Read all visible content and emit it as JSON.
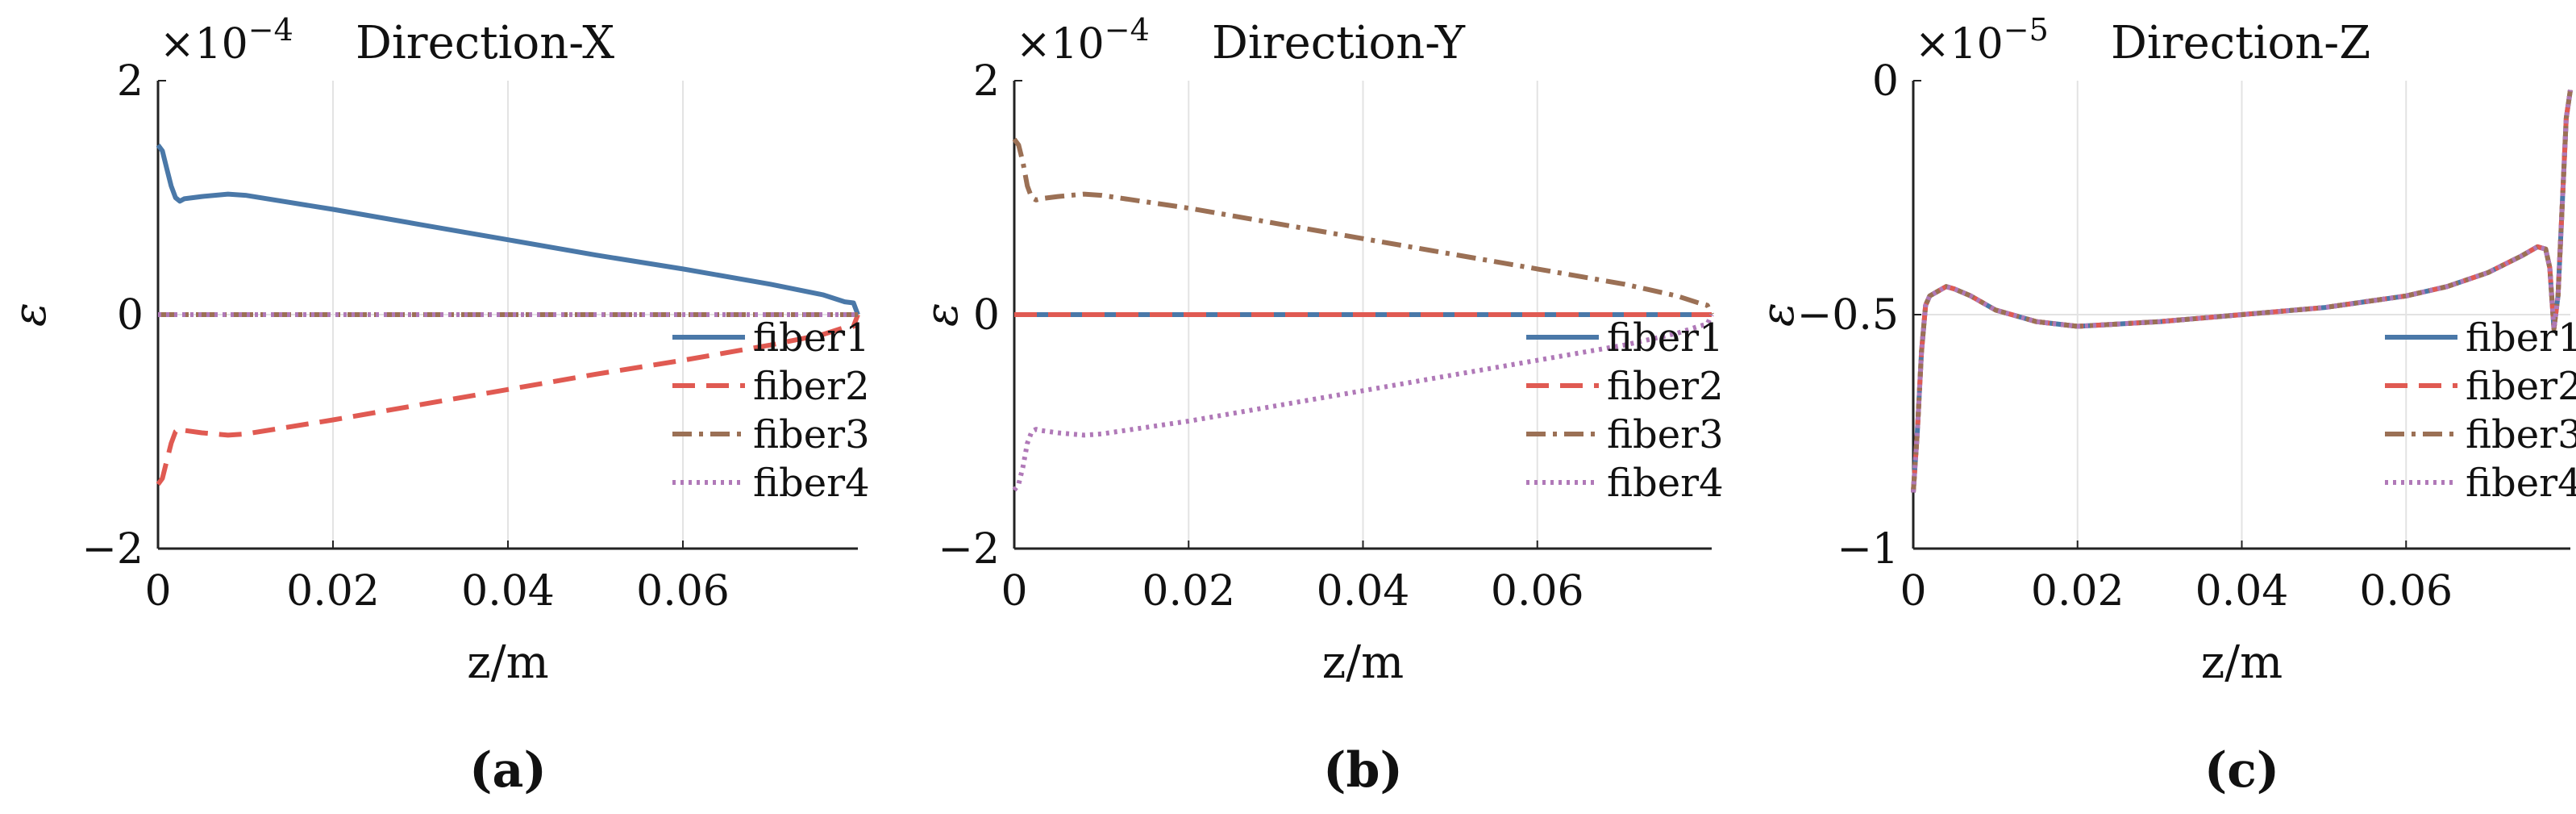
{
  "figure": {
    "axis_label_x": "z/m",
    "axis_label_y": "ε",
    "exponent_base": "×10",
    "legend_labels": [
      "fiber1",
      "fiber2",
      "fiber3",
      "fiber4"
    ],
    "series_colors": [
      "#4a78a8",
      "#e05a52",
      "#9b7055",
      "#b079b8"
    ]
  },
  "chart_data": [
    {
      "type": "line",
      "panel_label": "(a)",
      "title": "Direction-X",
      "exponent": "−4",
      "xlabel": "z/m",
      "ylabel": "ε",
      "xlim": [
        0,
        0.08
      ],
      "ylim": [
        -2,
        2
      ],
      "xticks": [
        0,
        0.02,
        0.04,
        0.06
      ],
      "xtick_labels": [
        "0",
        "0.02",
        "0.04",
        "0.06"
      ],
      "yticks": [
        -2,
        0,
        2
      ],
      "ytick_labels": [
        "−2",
        "0",
        "2"
      ],
      "grid": true,
      "legend": "bottom-right",
      "series": [
        {
          "name": "fiber1",
          "x": [
            0,
            0.0005,
            0.001,
            0.0015,
            0.002,
            0.0025,
            0.003,
            0.005,
            0.008,
            0.01,
            0.02,
            0.03,
            0.04,
            0.05,
            0.06,
            0.07,
            0.076,
            0.0785,
            0.0795,
            0.08
          ],
          "y": [
            1.45,
            1.4,
            1.25,
            1.1,
            1.0,
            0.97,
            0.99,
            1.01,
            1.03,
            1.02,
            0.9,
            0.77,
            0.64,
            0.51,
            0.39,
            0.26,
            0.17,
            0.11,
            0.1,
            0.0
          ]
        },
        {
          "name": "fiber2",
          "x": [
            0,
            0.0005,
            0.001,
            0.0015,
            0.002,
            0.0025,
            0.003,
            0.005,
            0.008,
            0.01,
            0.02,
            0.03,
            0.04,
            0.05,
            0.06,
            0.07,
            0.076,
            0.0785,
            0.0795,
            0.08
          ],
          "y": [
            -1.45,
            -1.4,
            -1.25,
            -1.1,
            -1.0,
            -0.97,
            -0.99,
            -1.01,
            -1.03,
            -1.02,
            -0.9,
            -0.77,
            -0.64,
            -0.51,
            -0.39,
            -0.26,
            -0.17,
            -0.11,
            -0.1,
            0.0
          ]
        },
        {
          "name": "fiber3",
          "x": [
            0,
            0.08
          ],
          "y": [
            0,
            0
          ]
        },
        {
          "name": "fiber4",
          "x": [
            0,
            0.08
          ],
          "y": [
            0,
            0
          ]
        }
      ]
    },
    {
      "type": "line",
      "panel_label": "(b)",
      "title": "Direction-Y",
      "exponent": "−4",
      "xlabel": "z/m",
      "ylabel": "ε",
      "xlim": [
        0,
        0.08
      ],
      "ylim": [
        -2,
        2
      ],
      "xticks": [
        0,
        0.02,
        0.04,
        0.06
      ],
      "xtick_labels": [
        "0",
        "0.02",
        "0.04",
        "0.06"
      ],
      "yticks": [
        -2,
        0,
        2
      ],
      "ytick_labels": [
        "−2",
        "0",
        "2"
      ],
      "grid": true,
      "legend": "bottom-right",
      "series": [
        {
          "name": "fiber1",
          "x": [
            0,
            0.08
          ],
          "y": [
            0,
            0
          ]
        },
        {
          "name": "fiber2",
          "x": [
            0,
            0.08
          ],
          "y": [
            0,
            0
          ]
        },
        {
          "name": "fiber3",
          "x": [
            0,
            0.0005,
            0.001,
            0.0015,
            0.002,
            0.0025,
            0.003,
            0.005,
            0.008,
            0.01,
            0.02,
            0.03,
            0.04,
            0.05,
            0.06,
            0.07,
            0.076,
            0.0785,
            0.0795,
            0.08
          ],
          "y": [
            1.5,
            1.45,
            1.3,
            1.1,
            1.0,
            0.98,
            0.99,
            1.01,
            1.03,
            1.02,
            0.91,
            0.78,
            0.65,
            0.52,
            0.39,
            0.26,
            0.16,
            0.1,
            0.08,
            0.0
          ]
        },
        {
          "name": "fiber4",
          "x": [
            0,
            0.0005,
            0.001,
            0.0015,
            0.002,
            0.0025,
            0.003,
            0.005,
            0.008,
            0.01,
            0.02,
            0.03,
            0.04,
            0.05,
            0.06,
            0.07,
            0.076,
            0.0785,
            0.0795,
            0.08
          ],
          "y": [
            -1.5,
            -1.45,
            -1.3,
            -1.1,
            -1.0,
            -0.98,
            -0.99,
            -1.01,
            -1.03,
            -1.02,
            -0.91,
            -0.78,
            -0.65,
            -0.52,
            -0.39,
            -0.26,
            -0.16,
            -0.1,
            -0.08,
            0.0
          ]
        }
      ]
    },
    {
      "type": "line",
      "panel_label": "(c)",
      "title": "Direction-Z",
      "exponent": "−5",
      "xlabel": "z/m",
      "ylabel": "ε",
      "xlim": [
        0,
        0.08
      ],
      "ylim": [
        -1,
        0
      ],
      "xticks": [
        0,
        0.02,
        0.04,
        0.06
      ],
      "xtick_labels": [
        "0",
        "0.02",
        "0.04",
        "0.06"
      ],
      "yticks": [
        -1,
        -0.5,
        0
      ],
      "ytick_labels": [
        "−1",
        "−0.5",
        "0"
      ],
      "grid": true,
      "legend": "bottom-right",
      "series": [
        {
          "name": "fiber1",
          "x": [
            0,
            0.0005,
            0.001,
            0.0015,
            0.002,
            0.003,
            0.004,
            0.005,
            0.007,
            0.01,
            0.015,
            0.02,
            0.025,
            0.03,
            0.04,
            0.05,
            0.06,
            0.065,
            0.07,
            0.074,
            0.076,
            0.077,
            0.0775,
            0.078,
            0.0785,
            0.0795,
            0.08
          ],
          "y": [
            -0.88,
            -0.75,
            -0.58,
            -0.48,
            -0.46,
            -0.45,
            -0.44,
            -0.445,
            -0.46,
            -0.49,
            -0.515,
            -0.525,
            -0.52,
            -0.515,
            -0.5,
            -0.485,
            -0.46,
            -0.44,
            -0.41,
            -0.375,
            -0.355,
            -0.36,
            -0.4,
            -0.53,
            -0.46,
            -0.08,
            -0.02
          ]
        },
        {
          "name": "fiber2",
          "x": [
            0,
            0.0005,
            0.001,
            0.0015,
            0.002,
            0.003,
            0.004,
            0.005,
            0.007,
            0.01,
            0.015,
            0.02,
            0.025,
            0.03,
            0.04,
            0.05,
            0.06,
            0.065,
            0.07,
            0.074,
            0.076,
            0.077,
            0.0775,
            0.078,
            0.0785,
            0.0795,
            0.08
          ],
          "y": [
            -0.88,
            -0.75,
            -0.58,
            -0.48,
            -0.46,
            -0.45,
            -0.44,
            -0.445,
            -0.46,
            -0.49,
            -0.515,
            -0.525,
            -0.52,
            -0.515,
            -0.5,
            -0.485,
            -0.46,
            -0.44,
            -0.41,
            -0.375,
            -0.355,
            -0.36,
            -0.4,
            -0.53,
            -0.46,
            -0.08,
            -0.02
          ]
        },
        {
          "name": "fiber3",
          "x": [
            0,
            0.0005,
            0.001,
            0.0015,
            0.002,
            0.003,
            0.004,
            0.005,
            0.007,
            0.01,
            0.015,
            0.02,
            0.025,
            0.03,
            0.04,
            0.05,
            0.06,
            0.065,
            0.07,
            0.074,
            0.076,
            0.077,
            0.0775,
            0.078,
            0.0785,
            0.0795,
            0.08
          ],
          "y": [
            -0.88,
            -0.75,
            -0.58,
            -0.48,
            -0.46,
            -0.45,
            -0.44,
            -0.445,
            -0.46,
            -0.49,
            -0.515,
            -0.525,
            -0.52,
            -0.515,
            -0.5,
            -0.485,
            -0.46,
            -0.44,
            -0.41,
            -0.375,
            -0.355,
            -0.36,
            -0.4,
            -0.53,
            -0.46,
            -0.08,
            -0.02
          ]
        },
        {
          "name": "fiber4",
          "x": [
            0,
            0.0005,
            0.001,
            0.0015,
            0.002,
            0.003,
            0.004,
            0.005,
            0.007,
            0.01,
            0.015,
            0.02,
            0.025,
            0.03,
            0.04,
            0.05,
            0.06,
            0.065,
            0.07,
            0.074,
            0.076,
            0.077,
            0.0775,
            0.078,
            0.0785,
            0.0795,
            0.08
          ],
          "y": [
            -0.88,
            -0.75,
            -0.58,
            -0.48,
            -0.46,
            -0.45,
            -0.44,
            -0.445,
            -0.46,
            -0.49,
            -0.515,
            -0.525,
            -0.52,
            -0.515,
            -0.5,
            -0.485,
            -0.46,
            -0.44,
            -0.41,
            -0.375,
            -0.355,
            -0.36,
            -0.4,
            -0.53,
            -0.46,
            -0.08,
            -0.02
          ]
        }
      ]
    }
  ]
}
